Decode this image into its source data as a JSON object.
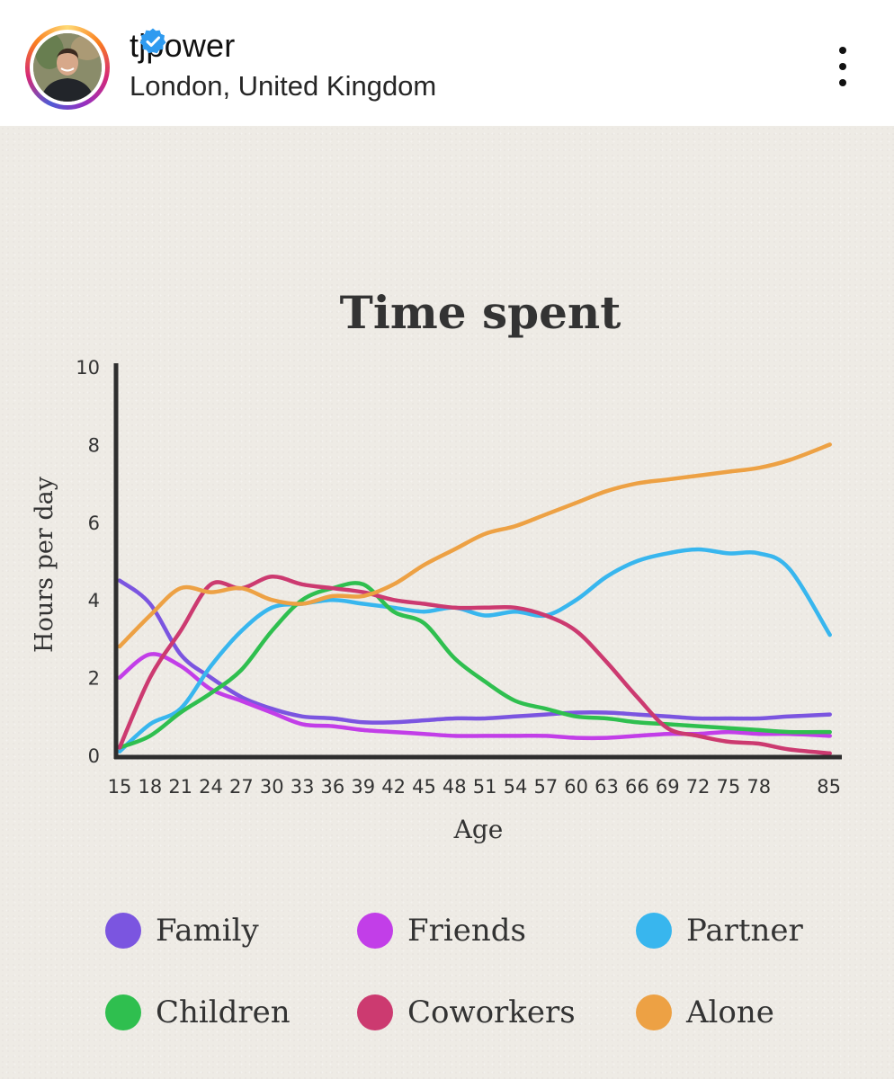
{
  "header": {
    "username": "tjpower",
    "location": "London, United Kingdom",
    "verified": true
  },
  "icons": {
    "verified": "verified-badge-icon",
    "more": "more-vertical-icon"
  },
  "chart_data": {
    "type": "line",
    "title": "Time spent",
    "xlabel": "Age",
    "ylabel": "Hours per day",
    "xlim": [
      15,
      86
    ],
    "ylim": [
      0,
      10
    ],
    "xticks": [
      15,
      18,
      21,
      24,
      27,
      30,
      33,
      36,
      39,
      42,
      45,
      48,
      51,
      54,
      57,
      60,
      63,
      66,
      69,
      72,
      75,
      78,
      85
    ],
    "yticks": [
      0,
      2,
      4,
      6,
      8,
      10
    ],
    "x": [
      15,
      18,
      21,
      24,
      27,
      30,
      33,
      36,
      39,
      42,
      45,
      48,
      51,
      54,
      57,
      60,
      63,
      66,
      69,
      72,
      75,
      78,
      81,
      85
    ],
    "series": [
      {
        "name": "Family",
        "color": "#7b55e0",
        "values": [
          4.5,
          3.9,
          2.6,
          2.0,
          1.5,
          1.2,
          1.0,
          0.95,
          0.85,
          0.85,
          0.9,
          0.95,
          0.95,
          1.0,
          1.05,
          1.1,
          1.1,
          1.05,
          1.0,
          0.95,
          0.95,
          0.95,
          1.0,
          1.05
        ]
      },
      {
        "name": "Friends",
        "color": "#c23ee8",
        "values": [
          2.0,
          2.6,
          2.3,
          1.7,
          1.4,
          1.1,
          0.8,
          0.75,
          0.65,
          0.6,
          0.55,
          0.5,
          0.5,
          0.5,
          0.5,
          0.45,
          0.45,
          0.5,
          0.55,
          0.55,
          0.6,
          0.55,
          0.55,
          0.5
        ]
      },
      {
        "name": "Partner",
        "color": "#38b6ee",
        "values": [
          0.1,
          0.8,
          1.2,
          2.3,
          3.2,
          3.8,
          3.9,
          4.0,
          3.9,
          3.8,
          3.7,
          3.8,
          3.6,
          3.7,
          3.6,
          4.0,
          4.6,
          5.0,
          5.2,
          5.3,
          5.2,
          5.2,
          4.8,
          3.1
        ]
      },
      {
        "name": "Children",
        "color": "#2fbf4f",
        "values": [
          0.2,
          0.5,
          1.1,
          1.6,
          2.2,
          3.2,
          4.0,
          4.3,
          4.4,
          3.7,
          3.4,
          2.5,
          1.9,
          1.4,
          1.2,
          1.0,
          0.95,
          0.85,
          0.8,
          0.75,
          0.7,
          0.65,
          0.6,
          0.6
        ]
      },
      {
        "name": "Coworkers",
        "color": "#cc3a70",
        "values": [
          0.2,
          2.0,
          3.2,
          4.4,
          4.3,
          4.6,
          4.4,
          4.3,
          4.2,
          4.0,
          3.9,
          3.8,
          3.8,
          3.8,
          3.6,
          3.2,
          2.4,
          1.5,
          0.7,
          0.5,
          0.35,
          0.3,
          0.15,
          0.05
        ]
      },
      {
        "name": "Alone",
        "color": "#eda144",
        "values": [
          2.8,
          3.6,
          4.3,
          4.2,
          4.3,
          4.0,
          3.9,
          4.1,
          4.1,
          4.4,
          4.9,
          5.3,
          5.7,
          5.9,
          6.2,
          6.5,
          6.8,
          7.0,
          7.1,
          7.2,
          7.3,
          7.4,
          7.6,
          8.0
        ]
      }
    ],
    "legend_position": "bottom",
    "grid": false
  }
}
